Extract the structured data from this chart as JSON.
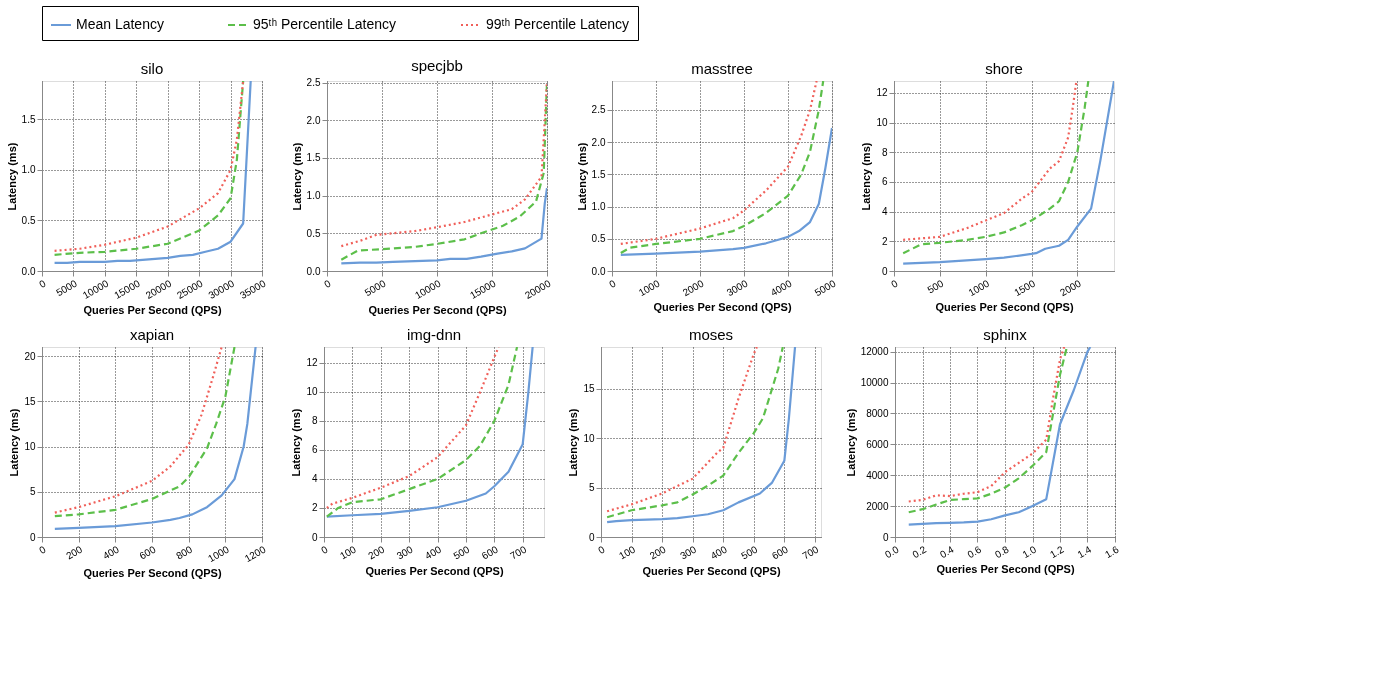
{
  "chart_data": [
    {
      "type": "line",
      "title": "silo",
      "xlabel": "Queries Per Second (QPS)",
      "ylabel": "Latency (ms)",
      "legend": "top",
      "grid": true,
      "xlim": [
        0,
        35000
      ],
      "xticks": [
        0,
        5000,
        10000,
        15000,
        20000,
        25000,
        30000,
        35000
      ],
      "ylim": [
        0,
        1.88
      ],
      "yticks": [
        {
          "value": 0,
          "label": "0.0"
        },
        0.5,
        {
          "value": 1,
          "label": "1.0"
        },
        1.5
      ],
      "series": [
        {
          "name": "Mean Latency",
          "color": "#6a9bd8",
          "line_style": "solid",
          "x": [
            2000,
            4000,
            6000,
            8000,
            10000,
            12000,
            14000,
            16000,
            18000,
            20000,
            22000,
            24000,
            26000,
            28000,
            30000,
            32000,
            33200
          ],
          "values": [
            0.08,
            0.08,
            0.09,
            0.09,
            0.09,
            0.1,
            0.1,
            0.11,
            0.12,
            0.13,
            0.15,
            0.16,
            0.19,
            0.22,
            0.29,
            0.47,
            1.88
          ]
        },
        {
          "name": "95ᵗʰ Percentile Latency",
          "color": "#5cbf4a",
          "line_style": "dashed",
          "x": [
            2000,
            6000,
            10000,
            15000,
            20000,
            25000,
            28000,
            30000,
            31000,
            32000
          ],
          "values": [
            0.16,
            0.18,
            0.19,
            0.22,
            0.27,
            0.4,
            0.55,
            0.72,
            1.1,
            1.88
          ]
        },
        {
          "name": "99ᵗʰ Percentile Latency",
          "color": "#f0605a",
          "line_style": "dotted",
          "x": [
            2000,
            6000,
            10000,
            15000,
            20000,
            25000,
            28000,
            30000,
            31000,
            32000
          ],
          "values": [
            0.2,
            0.22,
            0.26,
            0.33,
            0.44,
            0.62,
            0.77,
            1.0,
            1.3,
            1.88
          ]
        }
      ]
    },
    {
      "type": "line",
      "title": "specjbb",
      "xlabel": "Queries Per Second (QPS)",
      "ylabel": "Latency (ms)",
      "grid": true,
      "xlim": [
        0,
        20000
      ],
      "xticks": [
        0,
        5000,
        10000,
        15000,
        20000
      ],
      "ylim": [
        0,
        2.52
      ],
      "yticks": [
        {
          "value": 0,
          "label": "0.0"
        },
        0.5,
        {
          "value": 1,
          "label": "1.0"
        },
        1.5,
        {
          "value": 2,
          "label": "2.0"
        },
        2.5
      ],
      "series": [
        {
          "name": "Mean Latency",
          "color": "#6a9bd8",
          "line_style": "solid",
          "x": [
            1300,
            3000,
            4500,
            6000,
            8000,
            10000,
            11200,
            12700,
            14000,
            15500,
            16800,
            18000,
            19500,
            19800,
            20000
          ],
          "values": [
            0.1,
            0.11,
            0.11,
            0.12,
            0.13,
            0.14,
            0.16,
            0.16,
            0.19,
            0.23,
            0.26,
            0.3,
            0.43,
            0.9,
            1.1
          ]
        },
        {
          "name": "95ᵗʰ Percentile Latency",
          "color": "#5cbf4a",
          "line_style": "dashed",
          "x": [
            1300,
            2800,
            5000,
            8000,
            10000,
            12500,
            14000,
            16000,
            17500,
            19000,
            19700,
            20000
          ],
          "values": [
            0.15,
            0.27,
            0.29,
            0.32,
            0.36,
            0.42,
            0.5,
            0.6,
            0.72,
            0.92,
            1.3,
            2.5
          ]
        },
        {
          "name": "99ᵗʰ Percentile Latency",
          "color": "#f0605a",
          "line_style": "dotted",
          "x": [
            1300,
            3000,
            4500,
            6000,
            8000,
            10000,
            12500,
            15000,
            16800,
            18000,
            19500,
            20000
          ],
          "values": [
            0.33,
            0.4,
            0.48,
            0.5,
            0.53,
            0.58,
            0.65,
            0.75,
            0.82,
            0.95,
            1.25,
            2.5
          ]
        }
      ]
    },
    {
      "type": "line",
      "title": "masstree",
      "xlabel": "Queries Per Second (QPS)",
      "ylabel": "Latency (ms)",
      "grid": true,
      "xlim": [
        0,
        5000
      ],
      "xticks": [
        0,
        1000,
        2000,
        3000,
        4000,
        5000
      ],
      "ylim": [
        0,
        2.95
      ],
      "yticks": [
        {
          "value": 0,
          "label": "0.0"
        },
        0.5,
        {
          "value": 1,
          "label": "1.0"
        },
        1.5,
        {
          "value": 2,
          "label": "2.0"
        },
        2.5
      ],
      "series": [
        {
          "name": "Mean Latency",
          "color": "#6a9bd8",
          "line_style": "solid",
          "x": [
            200,
            1000,
            2000,
            2750,
            3000,
            3500,
            3800,
            4000,
            4250,
            4500,
            4700,
            4850,
            5000
          ],
          "values": [
            0.25,
            0.27,
            0.3,
            0.34,
            0.36,
            0.43,
            0.49,
            0.53,
            0.62,
            0.76,
            1.04,
            1.6,
            2.22
          ]
        },
        {
          "name": "95ᵗʰ Percentile Latency",
          "color": "#5cbf4a",
          "line_style": "dashed",
          "x": [
            200,
            400,
            1000,
            2000,
            2750,
            3000,
            3500,
            4000,
            4300,
            4500,
            4700,
            4800
          ],
          "values": [
            0.28,
            0.36,
            0.42,
            0.5,
            0.62,
            0.7,
            0.9,
            1.17,
            1.5,
            1.85,
            2.5,
            2.95
          ]
        },
        {
          "name": "99ᵗʰ Percentile Latency",
          "color": "#f0605a",
          "line_style": "dotted",
          "x": [
            200,
            1000,
            2000,
            2750,
            3000,
            3500,
            4000,
            4300,
            4500,
            4650
          ],
          "values": [
            0.42,
            0.5,
            0.66,
            0.82,
            0.94,
            1.25,
            1.62,
            2.1,
            2.5,
            2.95
          ]
        }
      ]
    },
    {
      "type": "line",
      "title": "shore",
      "xlabel": "Queries Per Second (QPS)",
      "ylabel": "Latency (ms)",
      "grid": true,
      "xlim": [
        0,
        2400
      ],
      "xticks": [
        0,
        500,
        1000,
        1500,
        2000
      ],
      "ylim": [
        0,
        12.8
      ],
      "yticks": [
        0,
        2,
        4,
        6,
        8,
        10,
        12
      ],
      "series": [
        {
          "name": "Mean Latency",
          "color": "#6a9bd8",
          "line_style": "solid",
          "x": [
            100,
            500,
            1000,
            1200,
            1500,
            1550,
            1650,
            1800,
            1900,
            2000,
            2150,
            2250,
            2400
          ],
          "values": [
            0.5,
            0.6,
            0.8,
            0.9,
            1.15,
            1.2,
            1.5,
            1.7,
            2.1,
            3.0,
            4.2,
            7.4,
            12.8
          ]
        },
        {
          "name": "95ᵗʰ Percentile Latency",
          "color": "#5cbf4a",
          "line_style": "dashed",
          "x": [
            100,
            300,
            500,
            800,
            1000,
            1200,
            1400,
            1500,
            1700,
            1800,
            1900,
            2000,
            2080,
            2120
          ],
          "values": [
            1.2,
            1.8,
            1.9,
            2.1,
            2.3,
            2.6,
            3.1,
            3.4,
            4.2,
            4.7,
            6.0,
            8.0,
            11,
            12.8
          ]
        },
        {
          "name": "99ᵗʰ Percentile Latency",
          "color": "#f0605a",
          "line_style": "dotted",
          "x": [
            100,
            500,
            800,
            1000,
            1200,
            1400,
            1500,
            1700,
            1800,
            1900,
            1950,
            1990
          ],
          "values": [
            2.1,
            2.3,
            2.9,
            3.4,
            3.9,
            4.9,
            5.3,
            6.9,
            7.4,
            9.0,
            11,
            12.8
          ]
        }
      ]
    },
    {
      "type": "line",
      "title": "xapian",
      "xlabel": "Queries Per Second (QPS)",
      "ylabel": "Latency (ms)",
      "grid": true,
      "xlim": [
        0,
        1200
      ],
      "xticks": [
        0,
        200,
        400,
        600,
        800,
        1000,
        1200
      ],
      "ylim": [
        0,
        21
      ],
      "yticks": [
        0,
        5,
        10,
        15,
        20
      ],
      "series": [
        {
          "name": "Mean Latency",
          "color": "#6a9bd8",
          "line_style": "solid",
          "x": [
            70,
            200,
            400,
            600,
            700,
            750,
            820,
            900,
            980,
            1050,
            1100,
            1120,
            1165
          ],
          "values": [
            0.9,
            1.0,
            1.2,
            1.6,
            1.9,
            2.1,
            2.5,
            3.3,
            4.6,
            6.4,
            10,
            12.5,
            21
          ]
        },
        {
          "name": "95ᵗʰ Percentile Latency",
          "color": "#5cbf4a",
          "line_style": "dashed",
          "x": [
            70,
            200,
            400,
            600,
            750,
            800,
            900,
            950,
            1000,
            1050
          ],
          "values": [
            2.3,
            2.5,
            3.0,
            4.2,
            5.6,
            6.6,
            9.8,
            12.5,
            15.5,
            21
          ]
        },
        {
          "name": "99ᵗʰ Percentile Latency",
          "color": "#f0605a",
          "line_style": "dotted",
          "x": [
            70,
            200,
            400,
            600,
            700,
            800,
            870,
            930,
            980
          ],
          "values": [
            2.7,
            3.3,
            4.5,
            6.2,
            7.8,
            10.2,
            13.5,
            17.5,
            21
          ]
        }
      ]
    },
    {
      "type": "line",
      "title": "img-dnn",
      "xlabel": "Queries Per Second (QPS)",
      "ylabel": "Latency (ms)",
      "grid": true,
      "xlim": [
        0,
        775
      ],
      "xticks": [
        0,
        100,
        200,
        300,
        400,
        500,
        600,
        700
      ],
      "ylim": [
        0,
        13.1
      ],
      "yticks": [
        0,
        2,
        4,
        6,
        8,
        10,
        12
      ],
      "series": [
        {
          "name": "Mean Latency",
          "color": "#6a9bd8",
          "line_style": "solid",
          "x": [
            10,
            100,
            200,
            300,
            400,
            500,
            570,
            600,
            650,
            700,
            720,
            735
          ],
          "values": [
            1.4,
            1.5,
            1.6,
            1.8,
            2.05,
            2.5,
            3.0,
            3.5,
            4.5,
            6.4,
            10,
            13.1
          ]
        },
        {
          "name": "95ᵗʰ Percentile Latency",
          "color": "#5cbf4a",
          "line_style": "dashed",
          "x": [
            10,
            50,
            100,
            200,
            300,
            400,
            500,
            550,
            600,
            650,
            680
          ],
          "values": [
            1.4,
            2.0,
            2.4,
            2.6,
            3.3,
            4.0,
            5.3,
            6.3,
            8.0,
            10.5,
            13.1
          ]
        },
        {
          "name": "99ᵗʰ Percentile Latency",
          "color": "#f0605a",
          "line_style": "dotted",
          "x": [
            10,
            30,
            100,
            200,
            300,
            400,
            500,
            550,
            600,
            615
          ],
          "values": [
            2.0,
            2.3,
            2.7,
            3.4,
            4.2,
            5.5,
            7.7,
            10,
            12.4,
            13.1
          ]
        }
      ]
    },
    {
      "type": "line",
      "title": "moses",
      "xlabel": "Queries Per Second (QPS)",
      "ylabel": "Latency (ms)",
      "grid": true,
      "xlim": [
        0,
        720
      ],
      "xticks": [
        0,
        100,
        200,
        300,
        400,
        500,
        600,
        700
      ],
      "ylim": [
        0,
        19.2
      ],
      "yticks": [
        0,
        5,
        10,
        15
      ],
      "series": [
        {
          "name": "Mean Latency",
          "color": "#6a9bd8",
          "line_style": "solid",
          "x": [
            20,
            50,
            100,
            200,
            250,
            300,
            350,
            400,
            450,
            520,
            560,
            600,
            615,
            635
          ],
          "values": [
            1.5,
            1.6,
            1.7,
            1.8,
            1.9,
            2.1,
            2.3,
            2.7,
            3.5,
            4.4,
            5.5,
            7.7,
            12,
            19.2
          ]
        },
        {
          "name": "95ᵗʰ Percentile Latency",
          "color": "#5cbf4a",
          "line_style": "dashed",
          "x": [
            20,
            100,
            200,
            250,
            300,
            350,
            400,
            450,
            500,
            530,
            560,
            580,
            595
          ],
          "values": [
            2.0,
            2.7,
            3.2,
            3.5,
            4.3,
            5.2,
            6.2,
            8.5,
            10.5,
            12,
            15,
            17,
            19.2
          ]
        },
        {
          "name": "99ᵗʰ Percentile Latency",
          "color": "#f0605a",
          "line_style": "dotted",
          "x": [
            20,
            100,
            200,
            300,
            380,
            400,
            450,
            500,
            510
          ],
          "values": [
            2.6,
            3.3,
            4.4,
            5.9,
            8.5,
            9.0,
            14,
            18.5,
            19.2
          ]
        }
      ]
    },
    {
      "type": "line",
      "title": "sphinx",
      "xlabel": "Queries Per Second (QPS)",
      "ylabel": "Latency (ms)",
      "grid": true,
      "xlim": [
        0,
        1.6
      ],
      "xticks": [
        {
          "value": 0,
          "label": "0.0"
        },
        0.2,
        0.4,
        0.6,
        0.8,
        {
          "value": 1,
          "label": "1.0"
        },
        1.2,
        1.4,
        1.6
      ],
      "ylim": [
        0,
        12300
      ],
      "yticks": [
        0,
        2000,
        4000,
        6000,
        8000,
        10000,
        12000
      ],
      "series": [
        {
          "name": "Mean Latency",
          "color": "#6a9bd8",
          "line_style": "solid",
          "x": [
            0.1,
            0.2,
            0.3,
            0.4,
            0.5,
            0.6,
            0.7,
            0.8,
            0.9,
            1.0,
            1.1,
            1.2,
            1.3,
            1.4,
            1.42
          ],
          "values": [
            800,
            850,
            900,
            920,
            950,
            1000,
            1150,
            1400,
            1600,
            2000,
            2450,
            7300,
            9500,
            12000,
            12300
          ]
        },
        {
          "name": "95ᵗʰ Percentile Latency",
          "color": "#5cbf4a",
          "line_style": "dashed",
          "x": [
            0.1,
            0.2,
            0.3,
            0.4,
            0.5,
            0.6,
            0.7,
            0.8,
            0.9,
            1.0,
            1.1,
            1.15,
            1.2,
            1.25
          ],
          "values": [
            1600,
            1800,
            2100,
            2400,
            2450,
            2500,
            2800,
            3200,
            3800,
            4600,
            5500,
            8000,
            10500,
            12300
          ]
        },
        {
          "name": "99ᵗʰ Percentile Latency",
          "color": "#f0605a",
          "line_style": "dotted",
          "x": [
            0.1,
            0.2,
            0.3,
            0.4,
            0.5,
            0.6,
            0.7,
            0.8,
            0.9,
            1.0,
            1.1,
            1.15,
            1.2,
            1.23
          ],
          "values": [
            2300,
            2400,
            2700,
            2650,
            2800,
            2900,
            3300,
            4200,
            4800,
            5400,
            6300,
            9000,
            11500,
            12300
          ]
        }
      ]
    }
  ]
}
